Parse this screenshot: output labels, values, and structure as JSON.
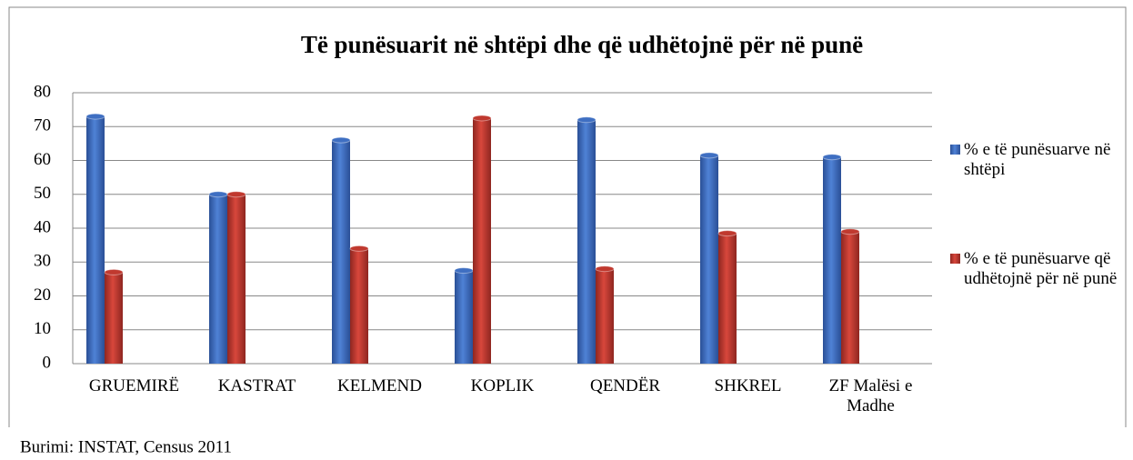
{
  "chart_data": {
    "type": "bar",
    "title": "Të punësuarit në shtëpi dhe që udhëtojnë për në punë",
    "categories": [
      "GRUEMIRË",
      "KASTRAT",
      "KELMEND",
      "KOPLIK",
      "QENDËR",
      "SHKREL",
      "ZF Malësi e Madhe"
    ],
    "series": [
      {
        "name": "% e të punësuarve në shtëpi",
        "color": "#3f6fc2",
        "values": [
          73,
          50,
          66,
          27.5,
          72,
          61.5,
          61
        ]
      },
      {
        "name": "% e të punësuarve që udhëtojnë për në punë",
        "color": "#c0392f",
        "values": [
          27,
          50,
          34,
          72.5,
          28,
          38.5,
          39
        ]
      }
    ],
    "ylim": [
      0,
      80
    ],
    "yticks": [
      0,
      10,
      20,
      30,
      40,
      50,
      60,
      70,
      80
    ],
    "grid": true,
    "legend": "right",
    "source": "Burimi: INSTAT, Census 2011"
  }
}
